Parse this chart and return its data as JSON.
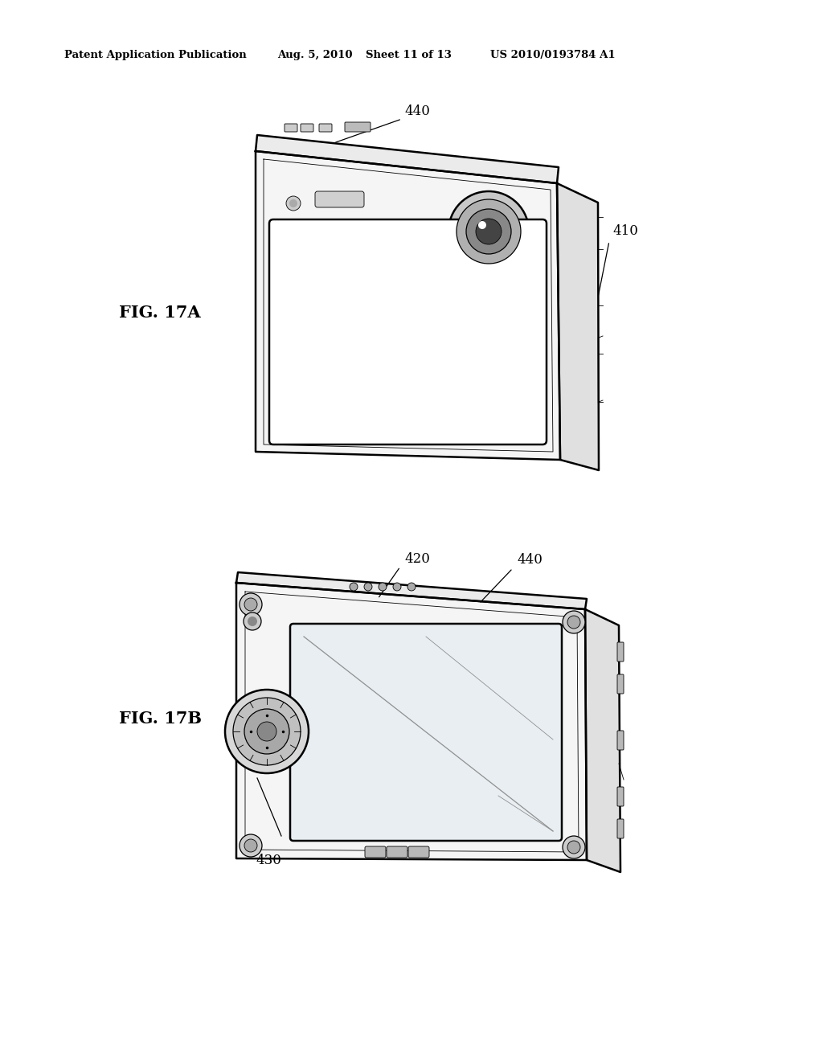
{
  "bg_color": "#ffffff",
  "header_text": "Patent Application Publication",
  "header_date": "Aug. 5, 2010",
  "header_sheet": "Sheet 11 of 13",
  "header_patent": "US 2010/0193784 A1",
  "fig17a_label": "FIG. 17A",
  "fig17b_label": "FIG. 17B",
  "label_440_top": "440",
  "label_410": "410",
  "label_420": "420",
  "label_440_bot": "440",
  "label_430": "430",
  "line_color": "#000000",
  "body_fill": "#f5f5f5",
  "side_fill": "#e0e0e0",
  "top_fill": "#ebebeb",
  "screen_fill": "#ffffff",
  "screen_fill_b": "#e8eef2",
  "lw_main": 1.8,
  "lw_thin": 0.9,
  "lw_very_thin": 0.6
}
